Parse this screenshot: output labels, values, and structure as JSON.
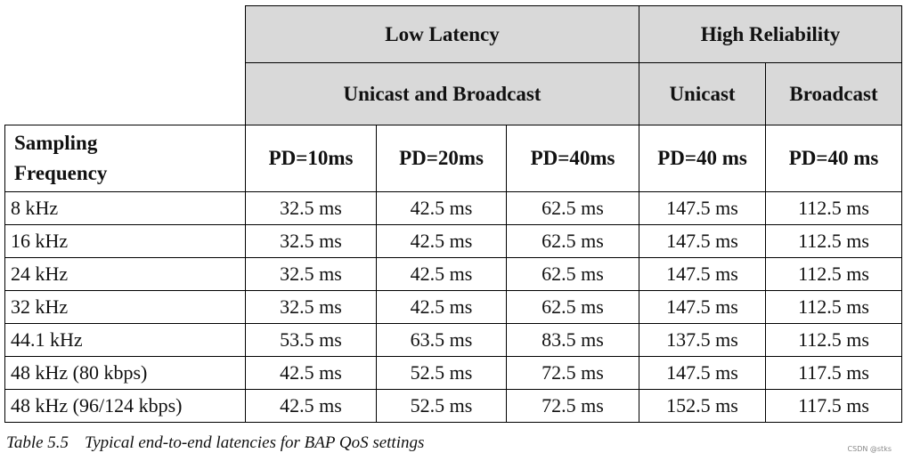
{
  "table": {
    "group_headers": [
      "Low Latency",
      "High Reliability"
    ],
    "sub_headers": [
      "Unicast and Broadcast",
      "Unicast",
      "Broadcast"
    ],
    "column_headers": [
      "Sampling Frequency",
      "PD=10ms",
      "PD=20ms",
      "PD=40ms",
      "PD=40 ms",
      "PD=40 ms"
    ],
    "rows": [
      [
        "8 kHz",
        "32.5 ms",
        "42.5 ms",
        "62.5 ms",
        "147.5 ms",
        "112.5 ms"
      ],
      [
        "16 kHz",
        "32.5 ms",
        "42.5 ms",
        "62.5 ms",
        "147.5 ms",
        "112.5 ms"
      ],
      [
        "24 kHz",
        "32.5 ms",
        "42.5 ms",
        "62.5 ms",
        "147.5 ms",
        "112.5 ms"
      ],
      [
        "32 kHz",
        "32.5 ms",
        "42.5 ms",
        "62.5 ms",
        "147.5 ms",
        "112.5 ms"
      ],
      [
        "44.1 kHz",
        "53.5 ms",
        "63.5 ms",
        "83.5 ms",
        "137.5 ms",
        "112.5 ms"
      ],
      [
        "48 kHz (80 kbps)",
        "42.5 ms",
        "52.5 ms",
        "72.5 ms",
        "147.5 ms",
        "117.5 ms"
      ],
      [
        "48 kHz (96/124 kbps)",
        "42.5 ms",
        "52.5 ms",
        "72.5 ms",
        "152.5 ms",
        "117.5 ms"
      ]
    ]
  },
  "caption": {
    "label": "Table 5.5",
    "text": "Typical end-to-end latencies for BAP QoS settings"
  },
  "watermark": "CSDN @stks"
}
